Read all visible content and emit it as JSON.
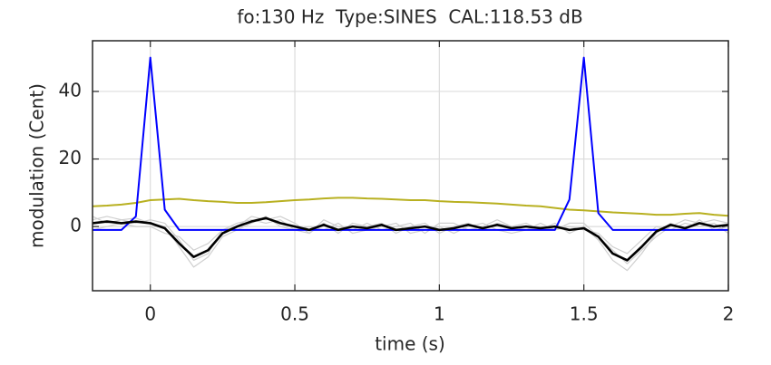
{
  "chart_data": {
    "type": "line",
    "title": "fo:130 Hz  Type:SINES  CAL:118.53 dB",
    "xlabel": "time (s)",
    "ylabel": "modulation (Cent)",
    "xlim": [
      -0.2,
      2
    ],
    "ylim": [
      -19,
      55
    ],
    "xticks": [
      0,
      0.5,
      1,
      1.5,
      2
    ],
    "yticks": [
      0,
      20,
      40
    ],
    "grid": true,
    "x": [
      -0.2,
      -0.15,
      -0.1,
      -0.05,
      0,
      0.05,
      0.1,
      0.15,
      0.2,
      0.25,
      0.3,
      0.35,
      0.4,
      0.45,
      0.5,
      0.55,
      0.6,
      0.65,
      0.7,
      0.75,
      0.8,
      0.85,
      0.9,
      0.95,
      1,
      1.05,
      1.1,
      1.15,
      1.2,
      1.25,
      1.3,
      1.35,
      1.4,
      1.45,
      1.5,
      1.55,
      1.6,
      1.65,
      1.7,
      1.75,
      1.8,
      1.85,
      1.9,
      1.95,
      2
    ],
    "series": [
      {
        "color": "#cfcfcf",
        "values": [
          2,
          3,
          2,
          2.5,
          1,
          0,
          -6,
          -12,
          -9,
          -3,
          -1,
          1,
          3,
          0,
          -1,
          -2,
          1,
          -2,
          1,
          0,
          1,
          -2,
          0,
          1,
          -2,
          0,
          1,
          -1,
          1,
          0,
          1,
          -1,
          1,
          -2,
          0,
          -4,
          -10,
          -13,
          -8,
          -2,
          1,
          -1,
          2,
          -1,
          0
        ]
      },
      {
        "color": "#cfcfcf",
        "values": [
          -1,
          0,
          1,
          0,
          0,
          -2,
          -3,
          -7,
          -5,
          -1,
          1,
          2,
          1,
          2,
          -1,
          0,
          -1,
          1,
          -2,
          -1,
          0,
          1,
          -2,
          -1,
          0,
          -2,
          0,
          1,
          -1,
          -2,
          -1,
          1,
          -1,
          0,
          -1,
          -2,
          -6,
          -8,
          -4,
          0,
          -1,
          1,
          0,
          1,
          -2
        ]
      },
      {
        "color": "#cfcfcf",
        "values": [
          3,
          1,
          2,
          1,
          2,
          1,
          -4,
          -10,
          -8,
          -1,
          0,
          3,
          2,
          3,
          1,
          -2,
          2,
          0,
          -1,
          1,
          -1,
          0,
          1,
          -2,
          1,
          1,
          -1,
          0,
          2,
          0,
          -1,
          0,
          -1,
          1,
          1,
          -3,
          -7,
          -11,
          -7,
          -3,
          0,
          2,
          1,
          2,
          1
        ]
      },
      {
        "color": "#b8b020",
        "values": [
          6,
          6.2,
          6.5,
          7,
          7.8,
          8,
          8.2,
          7.8,
          7.5,
          7.3,
          7,
          7,
          7.2,
          7.5,
          7.8,
          8,
          8.3,
          8.5,
          8.5,
          8.3,
          8.2,
          8,
          7.8,
          7.8,
          7.5,
          7.3,
          7.2,
          7,
          6.8,
          6.5,
          6.2,
          6,
          5.5,
          5,
          4.8,
          4.5,
          4.2,
          4,
          3.8,
          3.5,
          3.5,
          3.8,
          4,
          3.5,
          3.2
        ]
      },
      {
        "color": "#0000ff",
        "values": [
          -1,
          -1,
          -1,
          3,
          50,
          5,
          -1,
          -1,
          -1,
          -1,
          -1,
          -1,
          -1,
          -1,
          -1,
          -1,
          -1,
          -1,
          -1,
          -1,
          -1,
          -1,
          -1,
          -1,
          -1,
          -1,
          -1,
          -1,
          -1,
          -1,
          -1,
          -1,
          -1,
          8,
          50,
          4,
          -1,
          -1,
          -1,
          -1,
          -1,
          -1,
          -1,
          -1,
          -1
        ]
      },
      {
        "color": "#000000",
        "values": [
          1,
          1.5,
          1,
          1.5,
          1,
          -0.5,
          -5,
          -9,
          -7,
          -2,
          0,
          1.5,
          2.5,
          1,
          0,
          -1,
          0.5,
          -1,
          0,
          -0.5,
          0.5,
          -1,
          -0.5,
          0,
          -1,
          -0.5,
          0.5,
          -0.5,
          0.5,
          -0.5,
          0,
          -0.5,
          0,
          -1,
          -0.5,
          -3,
          -8,
          -10,
          -6,
          -1.5,
          0.5,
          -0.5,
          1,
          0,
          0.5
        ]
      }
    ]
  }
}
